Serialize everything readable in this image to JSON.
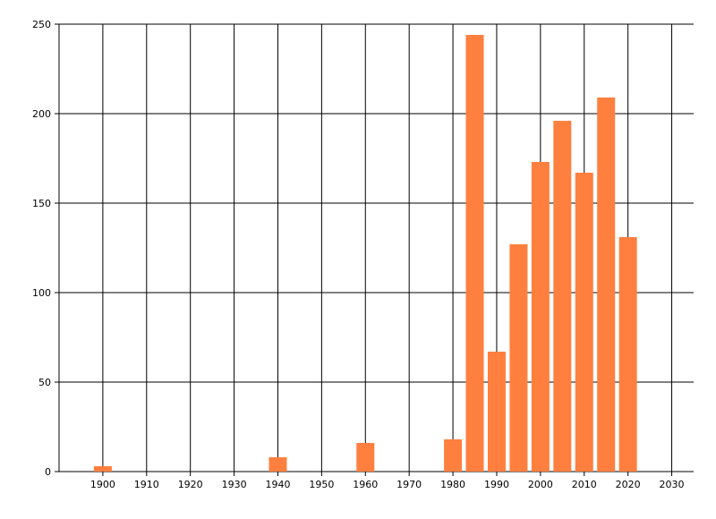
{
  "chart_data": {
    "type": "bar",
    "x": [
      1900,
      1940,
      1960,
      1980,
      1985,
      1990,
      1995,
      2000,
      2005,
      2010,
      2015,
      2020
    ],
    "values": [
      3,
      8,
      16,
      18,
      244,
      67,
      127,
      173,
      196,
      167,
      209,
      131
    ],
    "color": "#ff7f3f",
    "xlim": [
      1890,
      2035
    ],
    "xticks": [
      1900,
      1910,
      1920,
      1930,
      1940,
      1950,
      1960,
      1970,
      1980,
      1990,
      2000,
      2010,
      2020,
      2030
    ],
    "ylim": [
      0,
      250
    ],
    "yticks": [
      0,
      50,
      100,
      150,
      200,
      250
    ],
    "grid": true
  }
}
